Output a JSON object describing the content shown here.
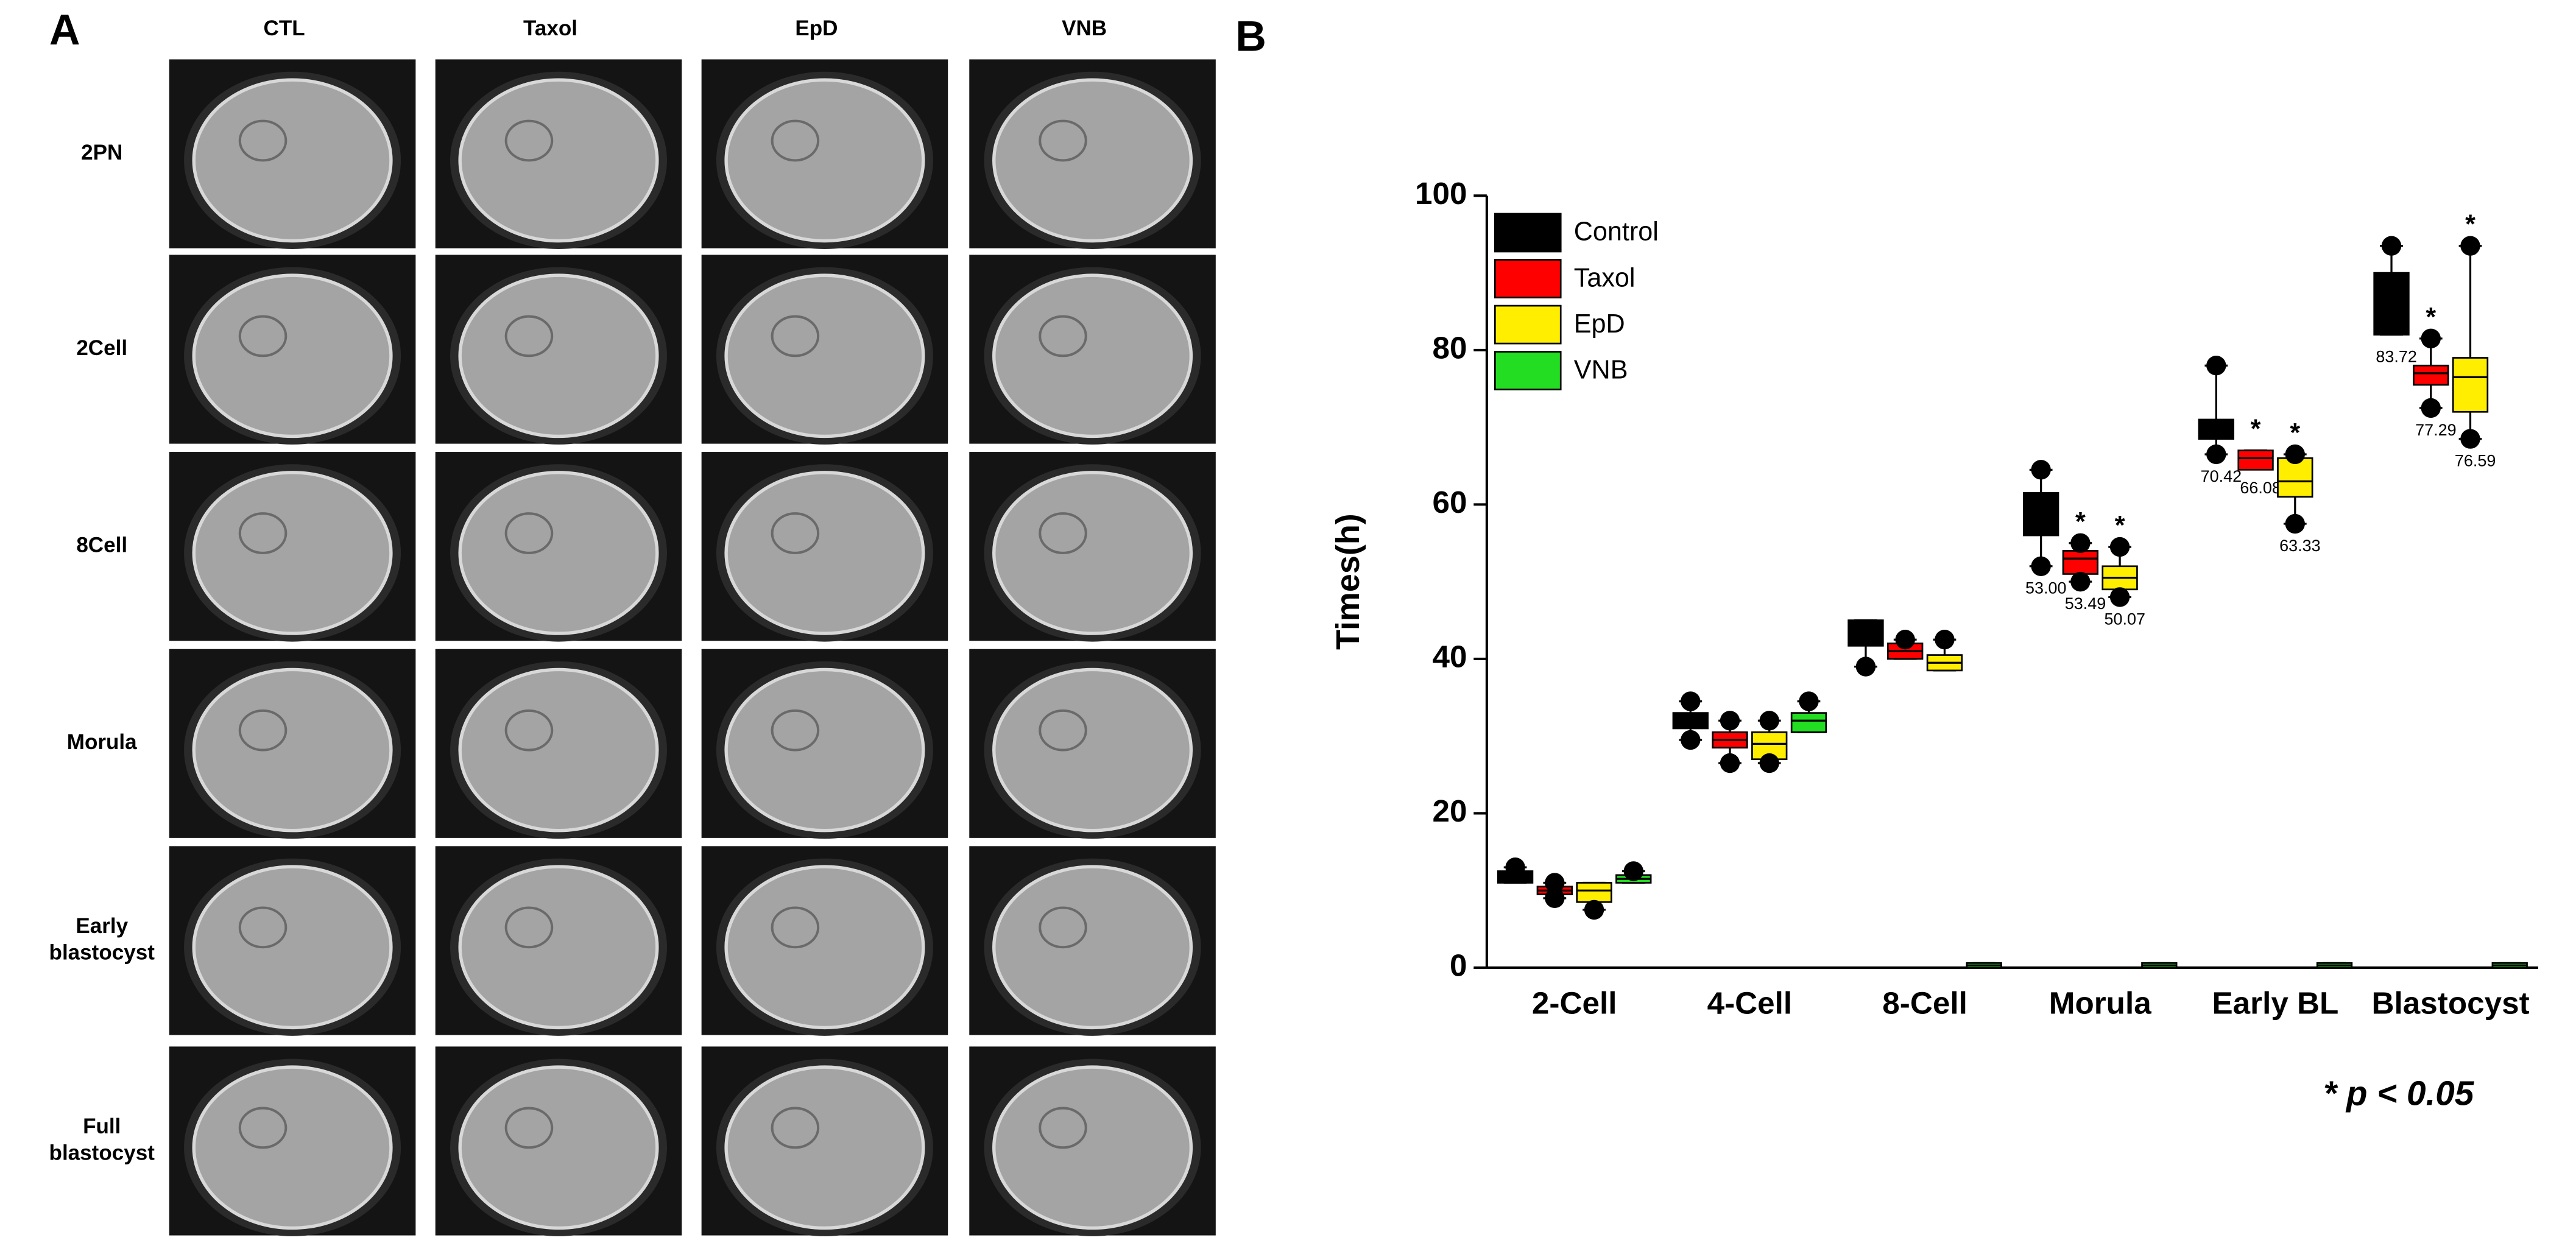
{
  "panel_a": {
    "label": "A",
    "columns": [
      "CTL",
      "Taxol",
      "EpD",
      "VNB"
    ],
    "rows": [
      [
        "2PN"
      ],
      [
        "2Cell"
      ],
      [
        "8Cell"
      ],
      [
        "Morula"
      ],
      [
        "Early",
        "blastocyst"
      ],
      [
        "Full",
        "blastocyst"
      ]
    ]
  },
  "chart_data": {
    "type": "box",
    "panel_label": "B",
    "ylabel": "Times(h)",
    "categories": [
      "2-Cell",
      "4-Cell",
      "8-Cell",
      "Morula",
      "Early BL",
      "Blastocyst"
    ],
    "ylim": [
      0,
      100
    ],
    "yticks": [
      0,
      20,
      40,
      60,
      80,
      100
    ],
    "legend": "upper left",
    "note": "* p < 0.05",
    "series": [
      {
        "name": "Control",
        "color": "#000000",
        "boxes": [
          [
            11,
            11,
            11.8,
            12.5,
            13
          ],
          [
            29.5,
            31,
            32,
            33,
            34.5
          ],
          [
            39,
            41.7,
            44,
            45,
            45
          ],
          [
            52,
            56,
            58,
            61.5,
            64.5
          ],
          [
            66.5,
            68.5,
            70,
            71,
            78
          ],
          [
            82,
            82,
            86,
            90,
            93.5
          ]
        ],
        "mean_labels": [
          null,
          null,
          null,
          "53.00",
          "70.42",
          "83.72"
        ],
        "stars": [
          null,
          null,
          null,
          null,
          null,
          null
        ]
      },
      {
        "name": "Taxol",
        "color": "#ff0000",
        "boxes": [
          [
            9,
            9.5,
            10,
            10.5,
            11
          ],
          [
            26.5,
            28.5,
            29.5,
            30.5,
            32
          ],
          [
            40,
            40,
            41,
            42,
            42.5
          ],
          [
            50,
            51,
            53,
            54,
            55
          ],
          [
            65,
            64.5,
            66,
            67,
            67
          ],
          [
            72.5,
            75.5,
            77,
            78,
            81.5
          ]
        ],
        "mean_labels": [
          null,
          null,
          null,
          "53.49",
          "66.08",
          "77.29"
        ],
        "stars": [
          null,
          null,
          null,
          "*",
          "*",
          "*"
        ]
      },
      {
        "name": "EpD",
        "color": "#ffee00",
        "boxes": [
          [
            7.5,
            8.5,
            10,
            11,
            11
          ],
          [
            26.5,
            27,
            29,
            30.5,
            32
          ],
          [
            38.5,
            38.5,
            39.5,
            40.5,
            42.5
          ],
          [
            48,
            49,
            50.5,
            52,
            54.5
          ],
          [
            57.5,
            61,
            63,
            66,
            66.5
          ],
          [
            68.5,
            72,
            76.5,
            79,
            93.5
          ]
        ],
        "mean_labels": [
          null,
          null,
          null,
          "50.07",
          "63.33",
          "76.59"
        ],
        "stars": [
          null,
          null,
          null,
          "*",
          "*",
          "*"
        ]
      },
      {
        "name": "VNB",
        "color": "#22dd22",
        "boxes": [
          [
            11,
            11,
            11.5,
            12,
            12.5
          ],
          [
            30.5,
            30.5,
            32,
            33,
            34.5
          ],
          [
            0,
            0,
            0.3,
            0.6,
            0.6
          ],
          [
            0,
            0,
            0.3,
            0.6,
            0.6
          ],
          [
            0,
            0,
            0.3,
            0.6,
            0.6
          ],
          [
            0,
            0,
            0.3,
            0.6,
            0.6
          ]
        ],
        "mean_labels": [
          null,
          null,
          null,
          null,
          null,
          null
        ],
        "stars": [
          null,
          null,
          null,
          null,
          null,
          null
        ]
      }
    ]
  }
}
